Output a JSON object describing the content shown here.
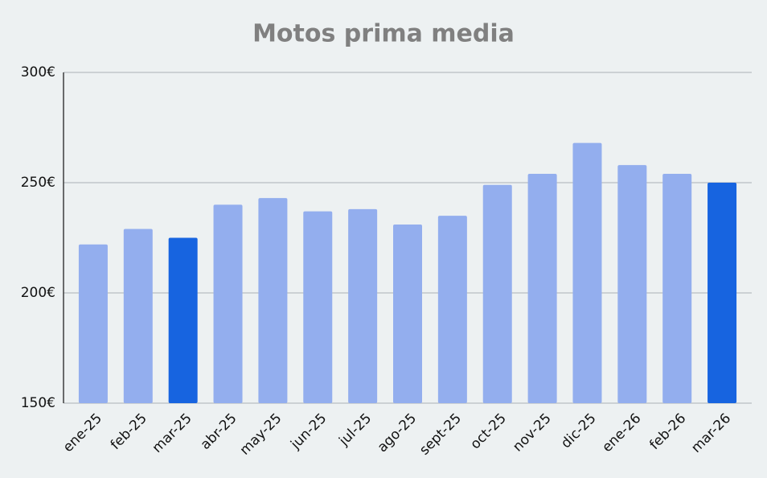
{
  "chart_data": {
    "type": "bar",
    "title": "Motos prima media",
    "categories": [
      "ene-25",
      "feb-25",
      "mar-25",
      "abr-25",
      "may-25",
      "jun-25",
      "jul-25",
      "ago-25",
      "sept-25",
      "oct-25",
      "nov-25",
      "dic-25",
      "ene-26",
      "feb-26",
      "mar-26"
    ],
    "values": [
      222,
      229,
      225,
      240,
      243,
      237,
      238,
      231,
      235,
      249,
      254,
      268,
      258,
      254,
      250
    ],
    "colors": [
      "#93aeee",
      "#93aeee",
      "#1764e0",
      "#93aeee",
      "#93aeee",
      "#93aeee",
      "#93aeee",
      "#93aeee",
      "#93aeee",
      "#93aeee",
      "#93aeee",
      "#93aeee",
      "#93aeee",
      "#93aeee",
      "#1764e0"
    ],
    "ylim": [
      150,
      300
    ],
    "yticks": [
      {
        "value": 150,
        "label": "150€"
      },
      {
        "value": 200,
        "label": "200€"
      },
      {
        "value": 250,
        "label": "250€"
      },
      {
        "value": 300,
        "label": "300€"
      }
    ],
    "grid": true
  }
}
